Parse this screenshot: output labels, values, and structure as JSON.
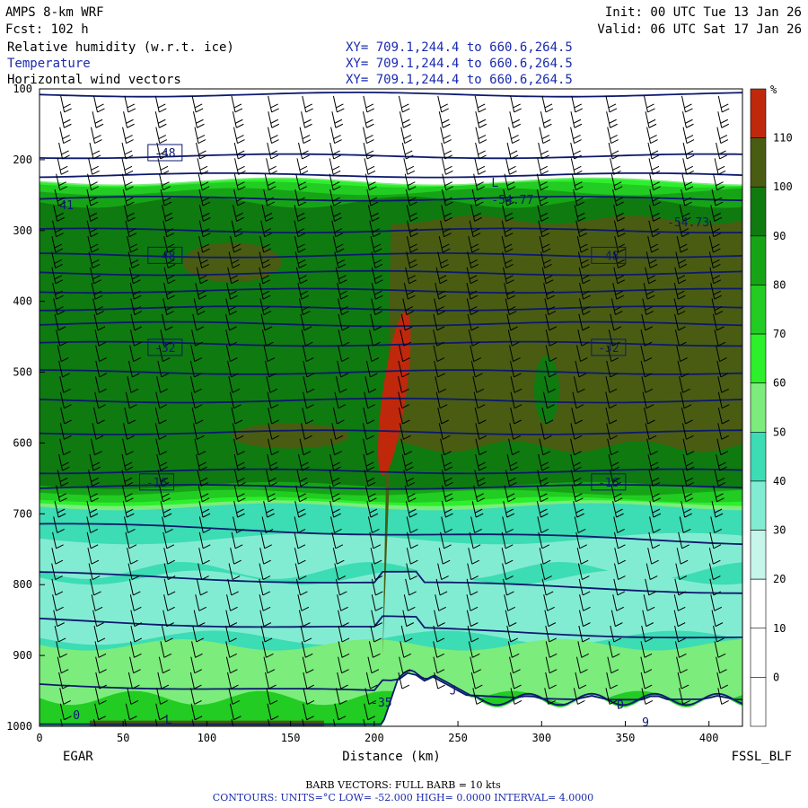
{
  "header": {
    "model": "AMPS 8-km WRF",
    "forecast": "Fcst:  102 h",
    "init": "Init: 00 UTC Tue 13 Jan 26",
    "valid": "Valid: 06 UTC Sat 17 Jan 26",
    "fields": [
      {
        "name": "Relative humidity (w.r.t. ice)",
        "xy": "XY= 709.1,244.4 to 660.6,264.5"
      },
      {
        "name": "Temperature",
        "xy": "XY= 709.1,244.4 to 660.6,264.5"
      },
      {
        "name": "Horizontal wind vectors",
        "xy": "XY= 709.1,244.4 to 660.6,264.5"
      }
    ]
  },
  "footer": {
    "left_station": "EGAR",
    "right_station": "FSSL_BLF",
    "barb_note": "BARB VECTORS:  FULL BARB = 10 kts",
    "contours_note": "CONTOURS:  UNITS=°C  LOW= -52.000      HIGH=  0.0000      INTERVAL=   4.0000"
  },
  "colors": {
    "rh_110_plus": "#c0280c",
    "rh_100_110": "#4a5c12",
    "rh_90_100": "#0f7a10",
    "rh_80_90": "#16a416",
    "rh_70_80": "#22cc22",
    "rh_60_70": "#2cf02c",
    "rh_50_60": "#7cec7c",
    "rh_40_50": "#3cdcb4",
    "rh_30_40": "#82ecd2",
    "rh_20_30": "#c6f6ea",
    "temperature_contour": "#0d1a6e"
  },
  "chart_data": {
    "type": "heatmap",
    "xlabel": "Distance (km)",
    "ylabel": "",
    "xlim": [
      0,
      420
    ],
    "ylim": [
      1000,
      100
    ],
    "x_ticks": [
      0,
      50,
      100,
      150,
      200,
      250,
      300,
      350,
      400
    ],
    "y_ticks": [
      100,
      200,
      300,
      400,
      500,
      600,
      700,
      800,
      900,
      1000
    ],
    "colorbar": {
      "unit": "%",
      "ticks": [
        110,
        100,
        90,
        80,
        70,
        60,
        50,
        40,
        30,
        20,
        10,
        0
      ]
    },
    "rh_field": [
      {
        "level": "90-100",
        "p_top": 205,
        "p_bottom": 685
      },
      {
        "level": "100-110",
        "x_start": 210,
        "x_end": 420,
        "p_top": 285,
        "p_bottom": 600
      },
      {
        "level": "110+",
        "x_center": 212,
        "p_top": 445,
        "p_bottom": 615
      }
    ],
    "temperature_contours": [
      {
        "value": -48,
        "label": "-48",
        "p": 190
      },
      {
        "value": -48,
        "label": "-48",
        "p": 335
      },
      {
        "value": -32,
        "label": "-32",
        "p": 465
      },
      {
        "value": -16,
        "label": "-16",
        "p": 655
      }
    ],
    "annotations": [
      "41",
      "L",
      "-54.77",
      "-54.73",
      "-35",
      "L",
      "J",
      "D",
      "0",
      "9"
    ],
    "wind_barb_columns_x": [
      10,
      31,
      52,
      72,
      93,
      114,
      134,
      155,
      176,
      196,
      217,
      238,
      258,
      279,
      300,
      320,
      341,
      362,
      382,
      403
    ]
  }
}
